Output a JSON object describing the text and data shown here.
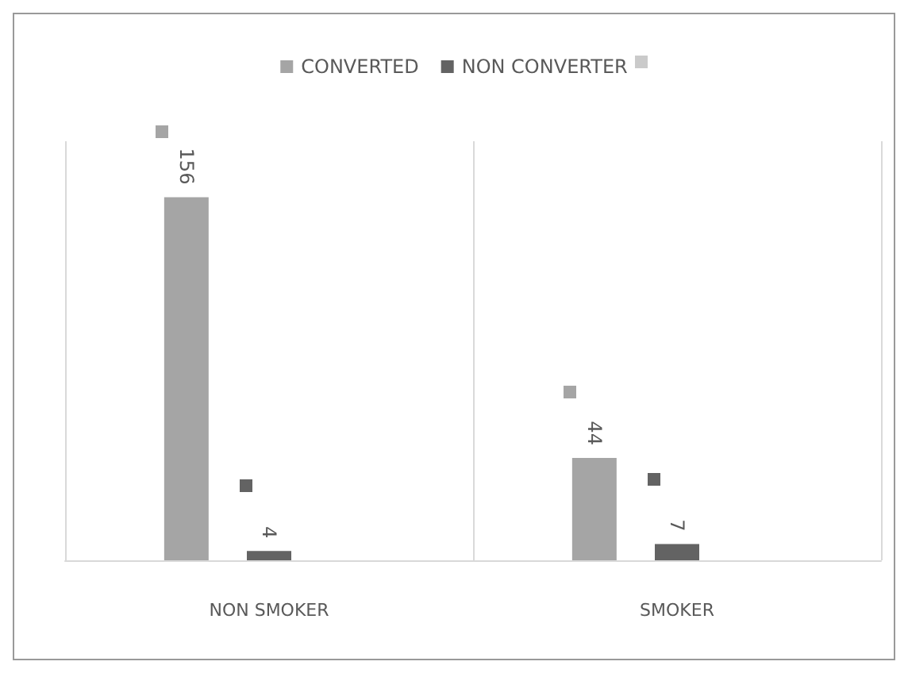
{
  "chart_data": {
    "type": "bar",
    "categories": [
      "NON SMOKER",
      "SMOKER"
    ],
    "series": [
      {
        "name": "CONVERTED",
        "color": "#a5a5a5",
        "values": [
          156,
          44
        ]
      },
      {
        "name": "NON CONVERTER",
        "color": "#636363",
        "values": [
          4,
          7
        ]
      },
      {
        "color": "#cacaca",
        "values": [
          null,
          null
        ]
      }
    ],
    "data_labels": true,
    "legend": "top",
    "grid": "x"
  }
}
